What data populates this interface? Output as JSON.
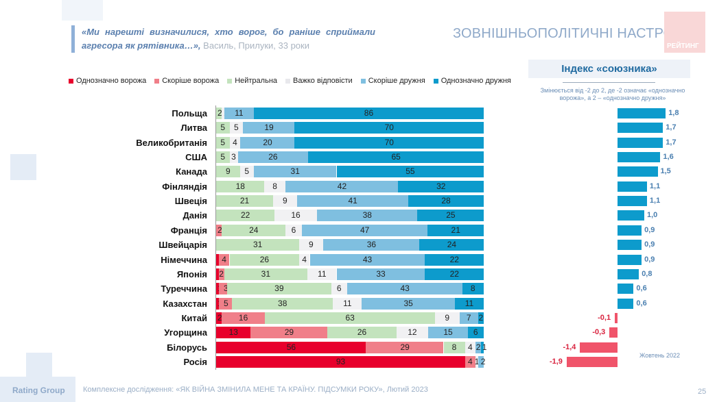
{
  "header": {
    "quote": "«Ми нарешті визначилися, хто ворог, бо раніше сприймали агресора як рятівника…»,",
    "attribution": "Василь, Прилуки, 33 роки",
    "title": "ЗОВНІШНЬОПОЛІТИЧНІ НАСТРОЇ",
    "logo_text": "РЕЙТИНГ"
  },
  "chart_data": [
    {
      "type": "bar",
      "orientation": "horizontal",
      "stacked": true,
      "xlim": [
        0,
        100
      ],
      "legend_position": "top",
      "series": [
        {
          "name": "Однозначно ворожа",
          "color": "#e8002c"
        },
        {
          "name": "Скоріше ворожа",
          "color": "#f07f89"
        },
        {
          "name": "Нейтральна",
          "color": "#c3e3bd"
        },
        {
          "name": "Важко відповісти",
          "color": "#f1f1f3"
        },
        {
          "name": "Скоріше дружня",
          "color": "#7fbfe0"
        },
        {
          "name": "Однозначно дружня",
          "color": "#0d9bcc"
        }
      ],
      "categories": [
        "Польща",
        "Литва",
        "Великобританія",
        "США",
        "Канада",
        "Фінляндія",
        "Швеція",
        "Данія",
        "Франція",
        "Швейцарія",
        "Німеччина",
        "Японія",
        "Туреччина",
        "Казахстан",
        "Китай",
        "Угорщина",
        "Білорусь",
        "Росія"
      ],
      "values": [
        [
          0,
          0,
          2,
          1,
          11,
          86
        ],
        [
          0,
          0,
          5,
          5,
          19,
          70
        ],
        [
          0,
          0,
          5,
          4,
          20,
          70
        ],
        [
          0,
          0,
          5,
          3,
          26,
          65
        ],
        [
          0,
          0,
          9,
          5,
          31,
          55
        ],
        [
          0,
          0,
          18,
          8,
          42,
          32
        ],
        [
          0,
          0,
          21,
          9,
          41,
          28
        ],
        [
          0,
          0,
          22,
          16,
          38,
          25
        ],
        [
          0,
          2,
          24,
          6,
          47,
          21
        ],
        [
          0,
          0,
          31,
          9,
          36,
          24
        ],
        [
          1,
          4,
          26,
          4,
          43,
          22
        ],
        [
          1,
          2,
          31,
          11,
          33,
          22
        ],
        [
          1,
          3,
          39,
          6,
          43,
          8
        ],
        [
          1,
          5,
          38,
          11,
          35,
          11
        ],
        [
          2,
          16,
          63,
          9,
          7,
          2
        ],
        [
          13,
          29,
          26,
          12,
          15,
          6
        ],
        [
          56,
          29,
          8,
          4,
          2,
          1
        ],
        [
          93,
          4,
          0,
          1,
          2,
          0
        ]
      ],
      "labels": [
        [
          "",
          "",
          "2",
          "1",
          "11",
          "86"
        ],
        [
          "",
          "",
          "5",
          "5",
          "19",
          "70"
        ],
        [
          "",
          "",
          "5",
          "4",
          "20",
          "70"
        ],
        [
          "",
          "",
          "5",
          "3",
          "26",
          "65"
        ],
        [
          "",
          "",
          "9",
          "5",
          "31",
          "55"
        ],
        [
          "",
          "",
          "18",
          "8",
          "42",
          "32"
        ],
        [
          "",
          "",
          "21",
          "9",
          "41",
          "28"
        ],
        [
          "",
          "",
          "22",
          "16",
          "38",
          "25"
        ],
        [
          "",
          "2",
          "24",
          "6",
          "47",
          "21"
        ],
        [
          "",
          "",
          "31",
          "9",
          "36",
          "24"
        ],
        [
          "",
          "4",
          "26",
          "4",
          "43",
          "22"
        ],
        [
          "",
          "2",
          "31",
          "11",
          "33",
          "22"
        ],
        [
          "1",
          "3",
          "39",
          "6",
          "43",
          "8"
        ],
        [
          "1",
          "5",
          "38",
          "11",
          "35",
          "11"
        ],
        [
          "2",
          "16",
          "63",
          "9",
          "7",
          "2"
        ],
        [
          "13",
          "29",
          "26",
          "12",
          "15",
          "6"
        ],
        [
          "56",
          "29",
          "8",
          "4",
          "2",
          "1"
        ],
        [
          "93",
          "4",
          "",
          "1",
          "2",
          ""
        ]
      ]
    },
    {
      "type": "bar",
      "orientation": "horizontal",
      "title": "Індекс «союзника»",
      "note": "Змінюється від -2 до 2, де -2 означає «однозначно ворожа», а 2 – «однозначно дружня»",
      "wave": "Жовтень 2022",
      "xlim": [
        -2,
        2
      ],
      "positive_color": "#0d9bcc",
      "negative_color": "#f0546a",
      "values": [
        1.8,
        1.7,
        1.7,
        1.6,
        1.5,
        1.1,
        1.1,
        1.0,
        0.9,
        0.9,
        0.9,
        0.8,
        0.6,
        0.6,
        -0.1,
        -0.3,
        -1.4,
        -1.9
      ],
      "labels": [
        "1,8",
        "1,7",
        "1,7",
        "1,6",
        "1,5",
        "1,1",
        "1,1",
        "1,0",
        "0,9",
        "0,9",
        "0,9",
        "0,8",
        "0,6",
        "0,6",
        "-0,1",
        "-0,3",
        "-1,4",
        "-1,9"
      ]
    }
  ],
  "footer": {
    "brand": "Rating Group",
    "source": "Комплексне дослідження: «ЯК ВІЙНА ЗМІНИЛА МЕНЕ ТА КРАЇНУ. ПІДСУМКИ РОКУ», Лютий 2023",
    "page": "25"
  }
}
